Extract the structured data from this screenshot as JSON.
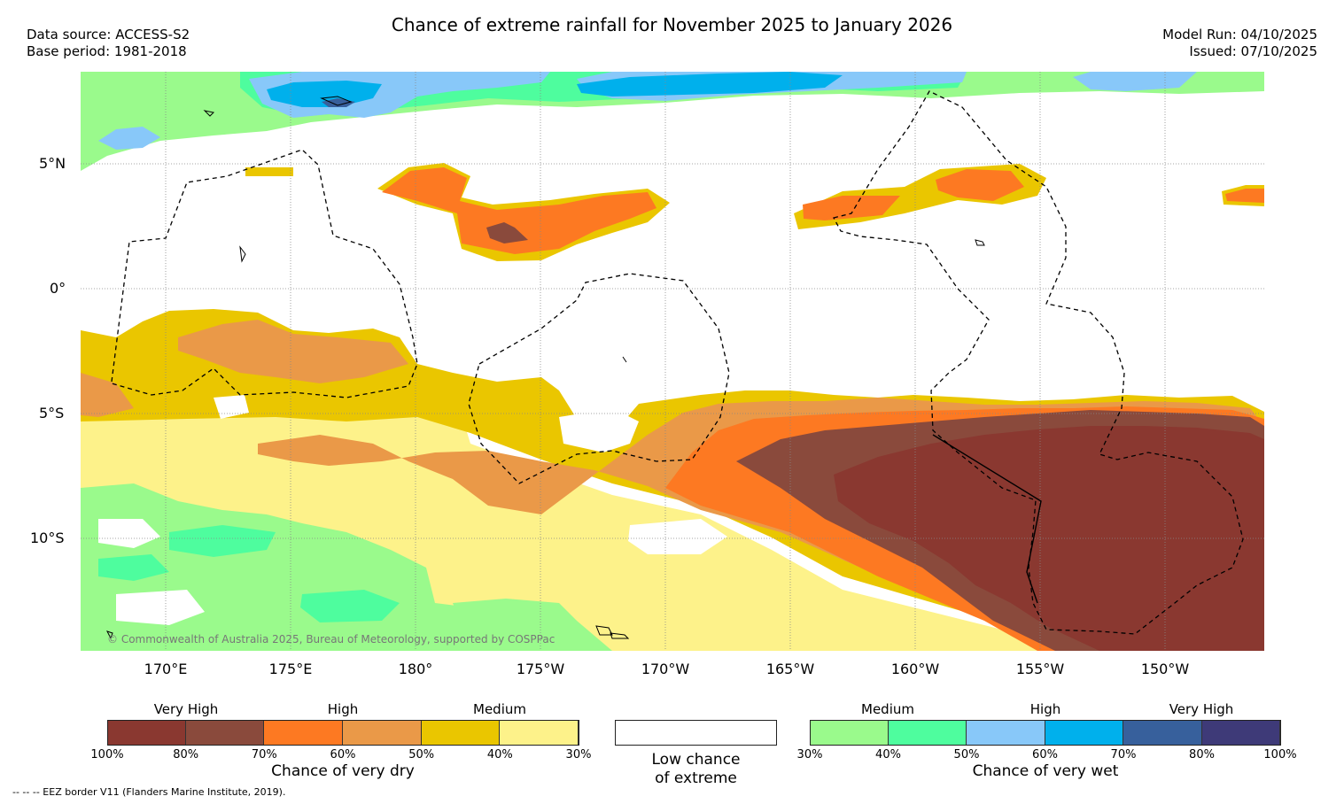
{
  "header": {
    "title": "Chance of extreme rainfall for November 2025 to January 2026",
    "data_source": "Data source: ACCESS-S2",
    "base_period": "Base period: 1981-2018",
    "model_run": "Model Run: 04/10/2025",
    "issued": "Issued: 07/10/2025"
  },
  "map": {
    "lat_labels": [
      "5°N",
      "0°",
      "5°S",
      "10°S"
    ],
    "lon_labels": [
      "170°E",
      "175°E",
      "180°",
      "175°W",
      "170°W",
      "165°W",
      "160°W",
      "155°W",
      "150°W"
    ],
    "copyright": "© Commonwealth of Australia 2025, Bureau of Meteorology, supported by COSPPac"
  },
  "legend": {
    "dry": {
      "categories": [
        "Very High",
        "High",
        "Medium"
      ],
      "ticks": [
        "100%",
        "80%",
        "70%",
        "60%",
        "50%",
        "40%",
        "30%"
      ],
      "colors": [
        "#8a3830",
        "#8a4a3c",
        "#fd7922",
        "#ea9948",
        "#eac600",
        "#fdf28a"
      ],
      "title": "Chance of very dry"
    },
    "low": {
      "title_line1": "Low chance",
      "title_line2": "of extreme"
    },
    "wet": {
      "categories": [
        "Medium",
        "High",
        "Very High"
      ],
      "ticks": [
        "30%",
        "40%",
        "50%",
        "60%",
        "70%",
        "80%",
        "100%"
      ],
      "colors": [
        "#9afa8c",
        "#4efd9e",
        "#88c8f9",
        "#00b0ec",
        "#37609c",
        "#3e3a78"
      ],
      "title": "Chance of very wet"
    }
  },
  "footnote": "--  --  -- EEZ border V11 (Flanders Marine Institute, 2019).",
  "colors": {
    "very_dry_high": "#8a3830",
    "dry_high": "#fd7922",
    "dry_medium": "#eac600",
    "wet_medium": "#9afa8c",
    "wet_high": "#00b0ec"
  }
}
